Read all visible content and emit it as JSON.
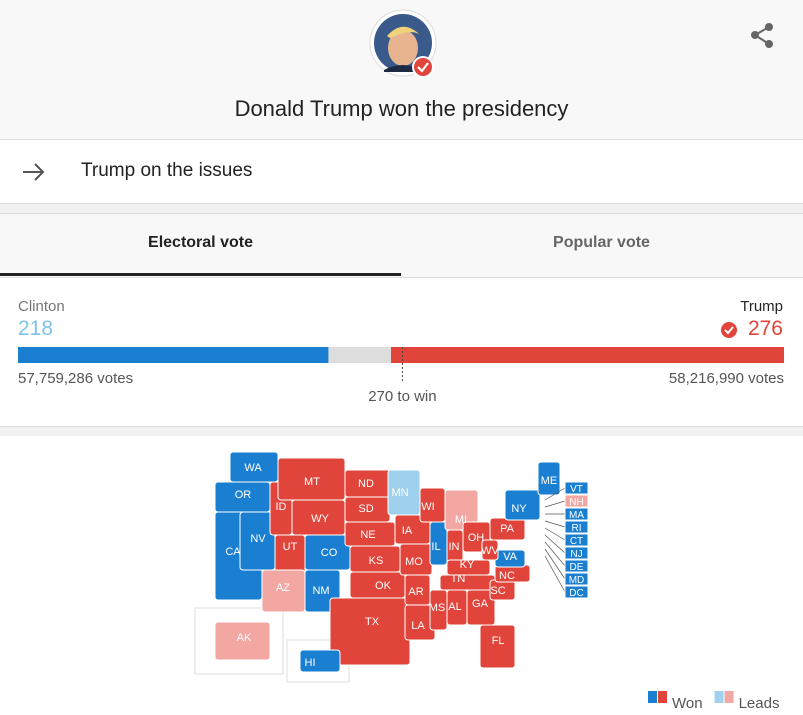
{
  "header": {
    "title": "Donald Trump won the presidency",
    "link_text": "Trump on the issues"
  },
  "tabs": [
    "Electoral vote",
    "Popular vote"
  ],
  "results": {
    "candidates": [
      {
        "name": "Clinton",
        "electoral": 218,
        "votes_label": "57,759,286 votes",
        "color": "#1a7fd0"
      },
      {
        "name": "Trump",
        "electoral": 276,
        "votes_label": "58,216,990 votes",
        "color": "#e0443a"
      }
    ],
    "xlim": [
      0,
      538
    ],
    "threshold": {
      "value": 270,
      "label": "270 to win"
    }
  },
  "map": {
    "states": [
      {
        "label": "WA",
        "color": "#1a7fd0"
      },
      {
        "label": "OR",
        "color": "#1a7fd0"
      },
      {
        "label": "CA",
        "color": "#1a7fd0"
      },
      {
        "label": "NV",
        "color": "#1a7fd0"
      },
      {
        "label": "ID",
        "color": "#e0443a"
      },
      {
        "label": "MT",
        "color": "#e0443a"
      },
      {
        "label": "WY",
        "color": "#e0443a"
      },
      {
        "label": "UT",
        "color": "#e0443a"
      },
      {
        "label": "AZ",
        "color": "#f2a7a3"
      },
      {
        "label": "NM",
        "color": "#1a7fd0"
      },
      {
        "label": "CO",
        "color": "#1a7fd0"
      },
      {
        "label": "ND",
        "color": "#e0443a"
      },
      {
        "label": "SD",
        "color": "#e0443a"
      },
      {
        "label": "NE",
        "color": "#e0443a"
      },
      {
        "label": "KS",
        "color": "#e0443a"
      },
      {
        "label": "OK",
        "color": "#e0443a"
      },
      {
        "label": "TX",
        "color": "#e0443a"
      },
      {
        "label": "MN",
        "color": "#9fd0ee"
      },
      {
        "label": "IA",
        "color": "#e0443a"
      },
      {
        "label": "MO",
        "color": "#e0443a"
      },
      {
        "label": "AR",
        "color": "#e0443a"
      },
      {
        "label": "LA",
        "color": "#e0443a"
      },
      {
        "label": "WI",
        "color": "#e0443a"
      },
      {
        "label": "IL",
        "color": "#1a7fd0"
      },
      {
        "label": "MI",
        "color": "#f2a7a3"
      },
      {
        "label": "IN",
        "color": "#e0443a"
      },
      {
        "label": "OH",
        "color": "#e0443a"
      },
      {
        "label": "KY",
        "color": "#e0443a"
      },
      {
        "label": "TN",
        "color": "#e0443a"
      },
      {
        "label": "MS",
        "color": "#e0443a"
      },
      {
        "label": "AL",
        "color": "#e0443a"
      },
      {
        "label": "GA",
        "color": "#e0443a"
      },
      {
        "label": "FL",
        "color": "#e0443a"
      },
      {
        "label": "SC",
        "color": "#e0443a"
      },
      {
        "label": "NC",
        "color": "#e0443a"
      },
      {
        "label": "VA",
        "color": "#1a7fd0"
      },
      {
        "label": "WV",
        "color": "#e0443a"
      },
      {
        "label": "PA",
        "color": "#e0443a"
      },
      {
        "label": "NY",
        "color": "#1a7fd0"
      },
      {
        "label": "ME",
        "color": "#1a7fd0"
      },
      {
        "label": "AK",
        "color": "#f2a7a3"
      },
      {
        "label": "HI",
        "color": "#1a7fd0"
      }
    ],
    "small_states": [
      {
        "label": "VT",
        "color": "#1a7fd0"
      },
      {
        "label": "NH",
        "color": "#f2a7a3"
      },
      {
        "label": "MA",
        "color": "#1a7fd0"
      },
      {
        "label": "RI",
        "color": "#1a7fd0"
      },
      {
        "label": "CT",
        "color": "#1a7fd0"
      },
      {
        "label": "NJ",
        "color": "#1a7fd0"
      },
      {
        "label": "DE",
        "color": "#1a7fd0"
      },
      {
        "label": "MD",
        "color": "#1a7fd0"
      },
      {
        "label": "DC",
        "color": "#1a7fd0"
      }
    ]
  },
  "legend": [
    {
      "label": "Won",
      "colors": [
        "#1a7fd0",
        "#e0443a"
      ]
    },
    {
      "label": "Leads",
      "colors": [
        "#9fd0ee",
        "#f2a7a3"
      ]
    }
  ]
}
